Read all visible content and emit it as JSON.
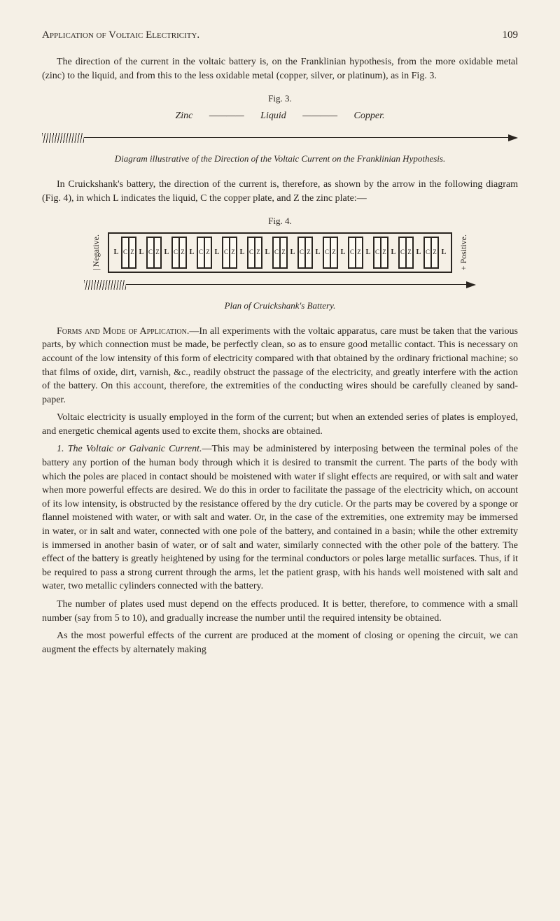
{
  "header": {
    "title": "Application of Voltaic Electricity.",
    "page": "109"
  },
  "para1": "The direction of the current in the voltaic battery is, on the Franklinian hypothesis, from the more oxidable metal (zinc) to the liquid, and from this to the less oxidable metal (copper, silver, or platinum), as in Fig. 3.",
  "fig3": {
    "caption": "Fig. 3.",
    "zinc": "Zinc",
    "liquid": "Liquid",
    "copper": "Copper.",
    "dash": "————"
  },
  "diag_caption1": "Diagram illustrative of the Direction of the Voltaic Current on the Franklinian Hypothesis.",
  "para2": "In Cruickshank's battery, the direction of the current is, therefore, as shown by the arrow in the following diagram (Fig. 4), in which L indicates the liquid, C the copper plate, and Z the zinc plate:—",
  "fig4": {
    "caption": "Fig. 4.",
    "neg": "| Negative.",
    "pos": "+ Positive.",
    "plan": "Plan of Cruickshank's Battery.",
    "cells": [
      {
        "l": "L",
        "c": "C",
        "z": "Z"
      },
      {
        "l": "L",
        "c": "C",
        "z": "Z"
      },
      {
        "l": "L",
        "c": "C",
        "z": "Z"
      },
      {
        "l": "L",
        "c": "C",
        "z": "Z"
      },
      {
        "l": "L",
        "c": "C",
        "z": "Z"
      },
      {
        "l": "L",
        "c": "C",
        "z": "Z"
      },
      {
        "l": "L",
        "c": "C",
        "z": "Z"
      },
      {
        "l": "L",
        "c": "C",
        "z": "Z"
      },
      {
        "l": "L",
        "c": "C",
        "z": "Z"
      },
      {
        "l": "L",
        "c": "C",
        "z": "Z"
      },
      {
        "l": "L",
        "c": "C",
        "z": "Z"
      },
      {
        "l": "L",
        "c": "C",
        "z": "Z"
      },
      {
        "l": "L",
        "c": "C",
        "z": "Z"
      }
    ]
  },
  "para3_lead": "Forms and Mode of Application.",
  "para3": "—In all experiments with the voltaic apparatus, care must be taken that the various parts, by which connection must be made, be perfectly clean, so as to ensure good metallic contact. This is necessary on account of the low intensity of this form of electricity compared with that obtained by the ordinary frictional machine; so that films of oxide, dirt, varnish, &c., readily obstruct the passage of the electricity, and greatly interfere with the action of the battery. On this account, therefore, the extremities of the conducting wires should be carefully cleaned by sand-paper.",
  "para4": "Voltaic electricity is usually employed in the form of the current; but when an extended series of plates is employed, and energetic chemical agents used to excite them, shocks are obtained.",
  "para5_lead": "1. The Voltaic or Galvanic Current.",
  "para5": "—This may be administered by interposing between the terminal poles of the battery any portion of the human body through which it is desired to transmit the current. The parts of the body with which the poles are placed in contact should be moistened with water if slight effects are required, or with salt and water when more powerful effects are desired. We do this in order to facilitate the passage of the electricity which, on account of its low intensity, is obstructed by the resistance offered by the dry cuticle. Or the parts may be covered by a sponge or flannel moistened with water, or with salt and water. Or, in the case of the extremities, one extremity may be immersed in water, or in salt and water, connected with one pole of the battery, and contained in a basin; while the other extremity is immersed in another basin of water, or of salt and water, similarly connected with the other pole of the battery. The effect of the battery is greatly heightened by using for the terminal conductors or poles large metallic surfaces. Thus, if it be required to pass a strong current through the arms, let the patient grasp, with his hands well moistened with salt and water, two metallic cylinders connected with the battery.",
  "para6": "The number of plates used must depend on the effects produced. It is better, therefore, to commence with a small number (say from 5 to 10), and gradually increase the number until the required intensity be obtained.",
  "para7": "As the most powerful effects of the current are produced at the moment of closing or opening the circuit, we can augment the effects by alternately making"
}
